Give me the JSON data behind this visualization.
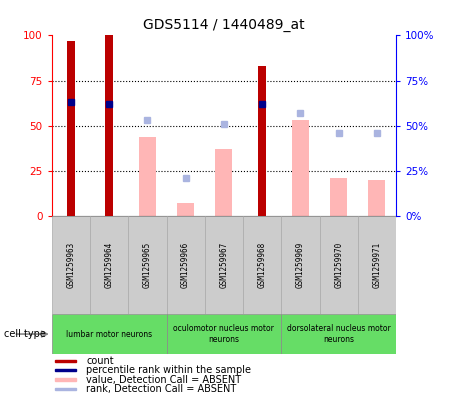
{
  "title": "GDS5114 / 1440489_at",
  "samples": [
    "GSM1259963",
    "GSM1259964",
    "GSM1259965",
    "GSM1259966",
    "GSM1259967",
    "GSM1259968",
    "GSM1259969",
    "GSM1259970",
    "GSM1259971"
  ],
  "count_values": [
    97,
    100,
    0,
    0,
    0,
    83,
    0,
    0,
    0
  ],
  "rank_values": [
    63,
    62,
    0,
    0,
    0,
    62,
    0,
    0,
    0
  ],
  "value_absent": [
    0,
    0,
    44,
    7,
    37,
    0,
    53,
    21,
    20
  ],
  "rank_absent": [
    0,
    0,
    53,
    21,
    51,
    0,
    57,
    46,
    46
  ],
  "ylim": [
    0,
    100
  ],
  "yticks": [
    0,
    25,
    50,
    75,
    100
  ],
  "count_color": "#bb0000",
  "rank_color": "#00008b",
  "value_absent_color": "#ffb6b6",
  "rank_absent_color": "#aab4e0",
  "cell_type_bg": "#66dd66",
  "sample_bg": "#cccccc",
  "legend_items": [
    {
      "label": "count",
      "color": "#bb0000"
    },
    {
      "label": "percentile rank within the sample",
      "color": "#00008b"
    },
    {
      "label": "value, Detection Call = ABSENT",
      "color": "#ffb6b6"
    },
    {
      "label": "rank, Detection Call = ABSENT",
      "color": "#aab4e0"
    }
  ],
  "cell_type_groups": [
    {
      "label": "lumbar motor neurons",
      "indices": [
        0,
        1,
        2
      ]
    },
    {
      "label": "oculomotor nucleus motor\nneurons",
      "indices": [
        3,
        4,
        5
      ]
    },
    {
      "label": "dorsolateral nucleus motor\nneurons",
      "indices": [
        6,
        7,
        8
      ]
    }
  ]
}
